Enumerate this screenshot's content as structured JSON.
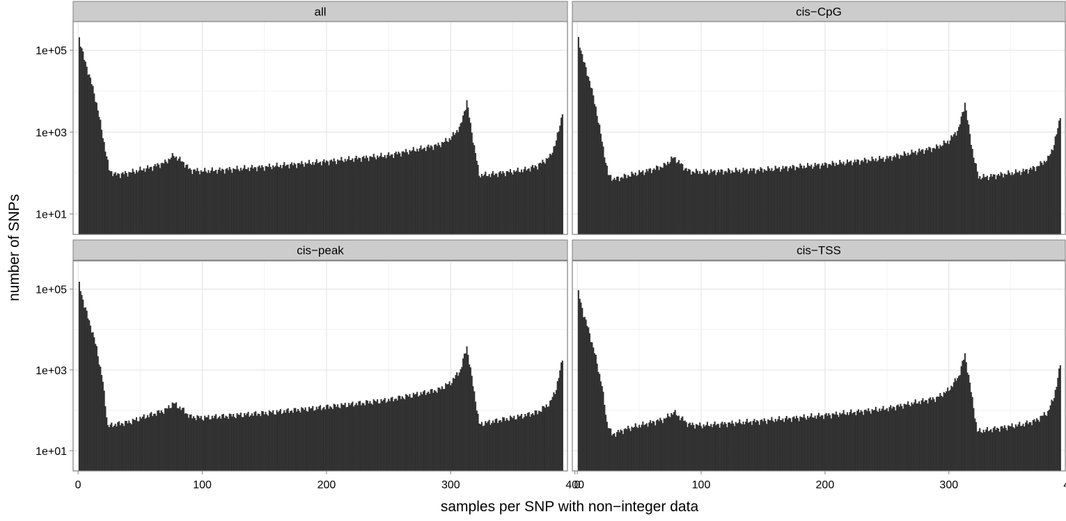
{
  "chart_data": {
    "type": "bar",
    "xlabel": "samples per SNP with non−integer data",
    "ylabel": "number of SNPs",
    "x_range": [
      -4,
      394
    ],
    "x_ticks": [
      0,
      100,
      200,
      300,
      400
    ],
    "y_scale": "log10",
    "y_range_log10": [
      0.5,
      5.7
    ],
    "y_ticks": [
      {
        "value": 10,
        "label": "1e+01"
      },
      {
        "value": 1000,
        "label": "1e+03"
      },
      {
        "value": 100000,
        "label": "1e+05"
      }
    ],
    "grid": true,
    "bar_color": "#333333",
    "x_bin_width": 1,
    "panels": [
      {
        "title": "all",
        "profile": {
          "first_x": 0,
          "first_value": 1,
          "anchors": [
            [
              1,
              200000
            ],
            [
              2,
              150000
            ],
            [
              5,
              60000
            ],
            [
              10,
              20000
            ],
            [
              15,
              5000
            ],
            [
              20,
              800
            ],
            [
              25,
              120
            ],
            [
              30,
              90
            ],
            [
              40,
              100
            ],
            [
              60,
              140
            ],
            [
              70,
              180
            ],
            [
              77,
              270
            ],
            [
              85,
              180
            ],
            [
              90,
              120
            ],
            [
              100,
              110
            ],
            [
              150,
              140
            ],
            [
              200,
              190
            ],
            [
              250,
              270
            ],
            [
              290,
              480
            ],
            [
              300,
              700
            ],
            [
              308,
              1400
            ],
            [
              313,
              5600
            ],
            [
              316,
              1500
            ],
            [
              320,
              300
            ],
            [
              323,
              90
            ],
            [
              330,
              90
            ],
            [
              360,
              120
            ],
            [
              370,
              150
            ],
            [
              380,
              250
            ],
            [
              385,
              600
            ],
            [
              388,
              1500
            ],
            [
              390,
              3200
            ]
          ]
        }
      },
      {
        "title": "cis−CpG",
        "profile": {
          "first_x": 0,
          "first_value": 1,
          "anchors": [
            [
              1,
              190000
            ],
            [
              2,
              140000
            ],
            [
              5,
              55000
            ],
            [
              10,
              18000
            ],
            [
              15,
              4000
            ],
            [
              20,
              600
            ],
            [
              25,
              90
            ],
            [
              30,
              70
            ],
            [
              40,
              85
            ],
            [
              60,
              120
            ],
            [
              70,
              150
            ],
            [
              78,
              240
            ],
            [
              85,
              150
            ],
            [
              90,
              110
            ],
            [
              100,
              105
            ],
            [
              150,
              120
            ],
            [
              200,
              160
            ],
            [
              250,
              230
            ],
            [
              290,
              420
            ],
            [
              300,
              600
            ],
            [
              308,
              1200
            ],
            [
              313,
              5200
            ],
            [
              316,
              1300
            ],
            [
              320,
              250
            ],
            [
              324,
              80
            ],
            [
              330,
              80
            ],
            [
              360,
              110
            ],
            [
              370,
              135
            ],
            [
              380,
              220
            ],
            [
              385,
              500
            ],
            [
              388,
              1200
            ],
            [
              390,
              2700
            ]
          ]
        }
      },
      {
        "title": "cis−peak",
        "profile": {
          "first_x": 0,
          "first_value": 1,
          "anchors": [
            [
              1,
              130000
            ],
            [
              2,
              100000
            ],
            [
              5,
              40000
            ],
            [
              10,
              13000
            ],
            [
              15,
              3500
            ],
            [
              20,
              500
            ],
            [
              24,
              40
            ],
            [
              30,
              45
            ],
            [
              40,
              50
            ],
            [
              60,
              80
            ],
            [
              70,
              100
            ],
            [
              77,
              150
            ],
            [
              85,
              100
            ],
            [
              90,
              70
            ],
            [
              100,
              65
            ],
            [
              150,
              85
            ],
            [
              200,
              120
            ],
            [
              250,
              180
            ],
            [
              290,
              320
            ],
            [
              300,
              480
            ],
            [
              308,
              1000
            ],
            [
              313,
              3800
            ],
            [
              316,
              1000
            ],
            [
              320,
              180
            ],
            [
              323,
              45
            ],
            [
              330,
              50
            ],
            [
              360,
              75
            ],
            [
              370,
              90
            ],
            [
              380,
              150
            ],
            [
              385,
              350
            ],
            [
              388,
              900
            ],
            [
              390,
              2000
            ]
          ]
        }
      },
      {
        "title": "cis−TSS",
        "profile": {
          "first_x": 0,
          "first_value": 1,
          "anchors": [
            [
              1,
              80000
            ],
            [
              2,
              60000
            ],
            [
              5,
              25000
            ],
            [
              10,
              8000
            ],
            [
              15,
              2000
            ],
            [
              20,
              400
            ],
            [
              24,
              50
            ],
            [
              28,
              25
            ],
            [
              40,
              35
            ],
            [
              60,
              50
            ],
            [
              70,
              60
            ],
            [
              78,
              90
            ],
            [
              85,
              60
            ],
            [
              90,
              45
            ],
            [
              100,
              42
            ],
            [
              150,
              55
            ],
            [
              200,
              75
            ],
            [
              250,
              110
            ],
            [
              290,
              200
            ],
            [
              300,
              320
            ],
            [
              308,
              700
            ],
            [
              313,
              2400
            ],
            [
              316,
              700
            ],
            [
              320,
              120
            ],
            [
              323,
              30
            ],
            [
              330,
              32
            ],
            [
              360,
              45
            ],
            [
              370,
              55
            ],
            [
              380,
              90
            ],
            [
              385,
              220
            ],
            [
              388,
              600
            ],
            [
              390,
              1400
            ]
          ]
        }
      }
    ]
  }
}
